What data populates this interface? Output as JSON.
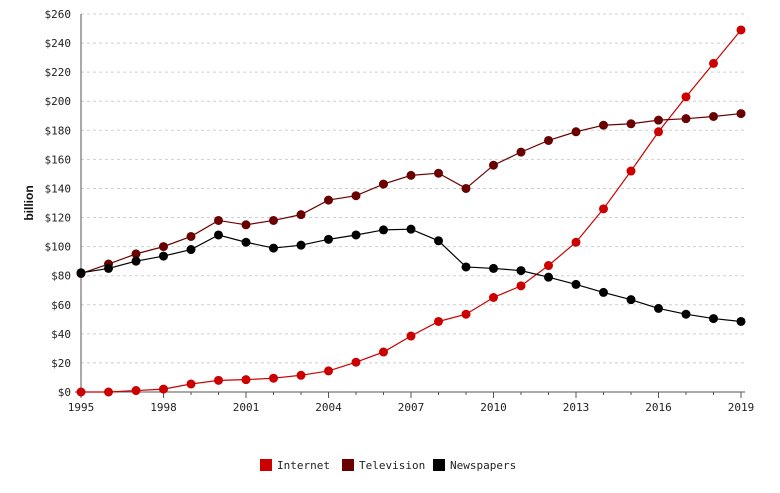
{
  "chart_data": {
    "type": "line",
    "title": "",
    "xlabel": "",
    "ylabel": "billion",
    "x": [
      1995,
      1996,
      1997,
      1998,
      1999,
      2000,
      2001,
      2002,
      2003,
      2004,
      2005,
      2006,
      2007,
      2008,
      2009,
      2010,
      2011,
      2012,
      2013,
      2014,
      2015,
      2016,
      2017,
      2018,
      2019
    ],
    "xlim": [
      1995,
      2019
    ],
    "ylim": [
      0,
      260
    ],
    "x_ticks": [
      "1995",
      "1998",
      "2001",
      "2004",
      "2007",
      "2010",
      "2013",
      "2016",
      "2019"
    ],
    "y_ticks": [
      "$0",
      "$20",
      "$40",
      "$60",
      "$80",
      "$100",
      "$120",
      "$140",
      "$160",
      "$180",
      "$200",
      "$220",
      "$240",
      "$260"
    ],
    "grid": "horizontal-dashed",
    "legend_position": "bottom-center",
    "series": [
      {
        "name": "Internet",
        "color": "#cc0000",
        "values": [
          0,
          0,
          1,
          2,
          5.5,
          8,
          8.5,
          9.5,
          11.5,
          14.5,
          20.5,
          27.5,
          38.5,
          48.5,
          53.5,
          65,
          73,
          87,
          103,
          126,
          152,
          179,
          203,
          226,
          249
        ]
      },
      {
        "name": "Television",
        "color": "#6b0000",
        "values": [
          81.5,
          88,
          95,
          100,
          107,
          118,
          115,
          118,
          122,
          132,
          135,
          143,
          149,
          150.5,
          140,
          156,
          165,
          173,
          179,
          183.5,
          184.5,
          187,
          188,
          189.5,
          191.5
        ]
      },
      {
        "name": "Newspapers",
        "color": "#000000",
        "values": [
          82,
          85,
          90,
          93.5,
          98,
          108,
          103,
          99,
          101,
          105,
          108,
          111.5,
          112,
          104,
          86,
          85,
          83.5,
          79,
          74,
          68.5,
          63.5,
          57.5,
          53.5,
          50.5,
          48.5
        ]
      }
    ]
  }
}
